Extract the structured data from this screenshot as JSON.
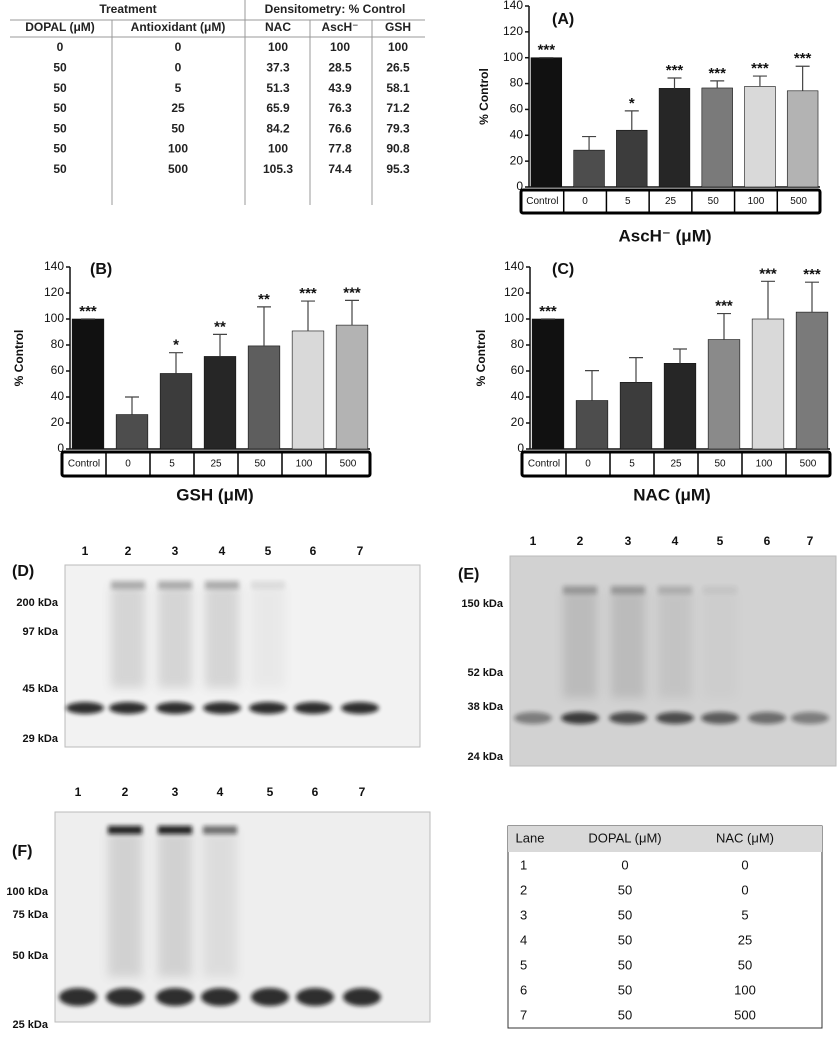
{
  "table": {
    "group_headers": [
      "Treatment",
      "Densitometry: % Control"
    ],
    "headers": [
      "DOPAL (μM)",
      "Antioxidant (μM)",
      "NAC",
      "AscH⁻",
      "GSH"
    ],
    "rows": [
      [
        0,
        0,
        100,
        100,
        100
      ],
      [
        50,
        0,
        37.3,
        28.5,
        26.5
      ],
      [
        50,
        5,
        51.3,
        43.9,
        58.1
      ],
      [
        50,
        25,
        65.9,
        76.3,
        71.2
      ],
      [
        50,
        50,
        84.2,
        76.6,
        79.3
      ],
      [
        50,
        100,
        100,
        77.8,
        90.8
      ],
      [
        50,
        500,
        105.3,
        74.4,
        95.3
      ]
    ]
  },
  "chart_data": [
    {
      "type": "bar",
      "title": "(A)",
      "y_label": "% Control",
      "x_label": "AscH⁻ (μM)",
      "categories": [
        "Control",
        "0",
        "5",
        "25",
        "50",
        "100",
        "500"
      ],
      "values": [
        100,
        28.5,
        43.9,
        76.3,
        76.6,
        77.8,
        74.4
      ],
      "errors": [
        0,
        10.5,
        15,
        8,
        5.5,
        8,
        19
      ],
      "significance": [
        "***",
        null,
        "*",
        "***",
        "***",
        "***",
        "***"
      ],
      "colors": [
        "#111111",
        "#4d4d4d",
        "#3c3c3c",
        "#262626",
        "#7a7a7a",
        "#d9d9d9",
        "#b3b3b3"
      ],
      "ylim": [
        0,
        140
      ],
      "yticks": [
        0,
        20,
        40,
        60,
        80,
        100,
        120,
        140
      ]
    },
    {
      "type": "bar",
      "title": "(B)",
      "y_label": "% Control",
      "x_label": "GSH (μM)",
      "categories": [
        "Control",
        "0",
        "5",
        "25",
        "50",
        "100",
        "500"
      ],
      "values": [
        100,
        26.5,
        58.1,
        71.2,
        79.3,
        90.8,
        95.3
      ],
      "errors": [
        0,
        13.5,
        16,
        17,
        30,
        23,
        19
      ],
      "significance": [
        "***",
        null,
        "*",
        "**",
        "**",
        "***",
        "***"
      ],
      "colors": [
        "#111111",
        "#4d4d4d",
        "#3c3c3c",
        "#262626",
        "#5e5e5e",
        "#d9d9d9",
        "#b3b3b3"
      ],
      "ylim": [
        0,
        140
      ],
      "yticks": [
        0,
        20,
        40,
        60,
        80,
        100,
        120,
        140
      ]
    },
    {
      "type": "bar",
      "title": "(C)",
      "y_label": "% Control",
      "x_label": "NAC (μM)",
      "categories": [
        "Control",
        "0",
        "5",
        "25",
        "50",
        "100",
        "500"
      ],
      "values": [
        100,
        37.3,
        51.3,
        65.9,
        84.2,
        100,
        105.3
      ],
      "errors": [
        0,
        23,
        19,
        11,
        20,
        29,
        23
      ],
      "significance": [
        "***",
        null,
        null,
        null,
        "***",
        "***",
        "***"
      ],
      "colors": [
        "#111111",
        "#4d4d4d",
        "#3c3c3c",
        "#262626",
        "#8a8a8a",
        "#d9d9d9",
        "#7a7a7a"
      ],
      "ylim": [
        0,
        140
      ],
      "yticks": [
        0,
        20,
        40,
        60,
        80,
        100,
        120,
        140
      ]
    }
  ],
  "gels": [
    {
      "label": "(D)",
      "lanes": [
        "1",
        "2",
        "3",
        "4",
        "5",
        "6",
        "7"
      ],
      "markers": [
        "200 kDa",
        "97 kDa",
        "45 kDa",
        "29 kDa"
      ]
    },
    {
      "label": "(E)",
      "lanes": [
        "1",
        "2",
        "3",
        "4",
        "5",
        "6",
        "7"
      ],
      "markers": [
        "150 kDa",
        "52 kDa",
        "38 kDa",
        "24 kDa"
      ]
    },
    {
      "label": "(F)",
      "lanes": [
        "1",
        "2",
        "3",
        "4",
        "5",
        "6",
        "7"
      ],
      "markers": [
        "100 kDa",
        "75 kDa",
        "50 kDa",
        "25 kDa"
      ]
    }
  ],
  "lane_table": {
    "headers": [
      "Lane",
      "DOPAL (μM)",
      "NAC (μM)"
    ],
    "rows": [
      [
        1,
        0,
        0
      ],
      [
        2,
        50,
        0
      ],
      [
        3,
        50,
        5
      ],
      [
        4,
        50,
        25
      ],
      [
        5,
        50,
        50
      ],
      [
        6,
        50,
        100
      ],
      [
        7,
        50,
        500
      ]
    ]
  }
}
